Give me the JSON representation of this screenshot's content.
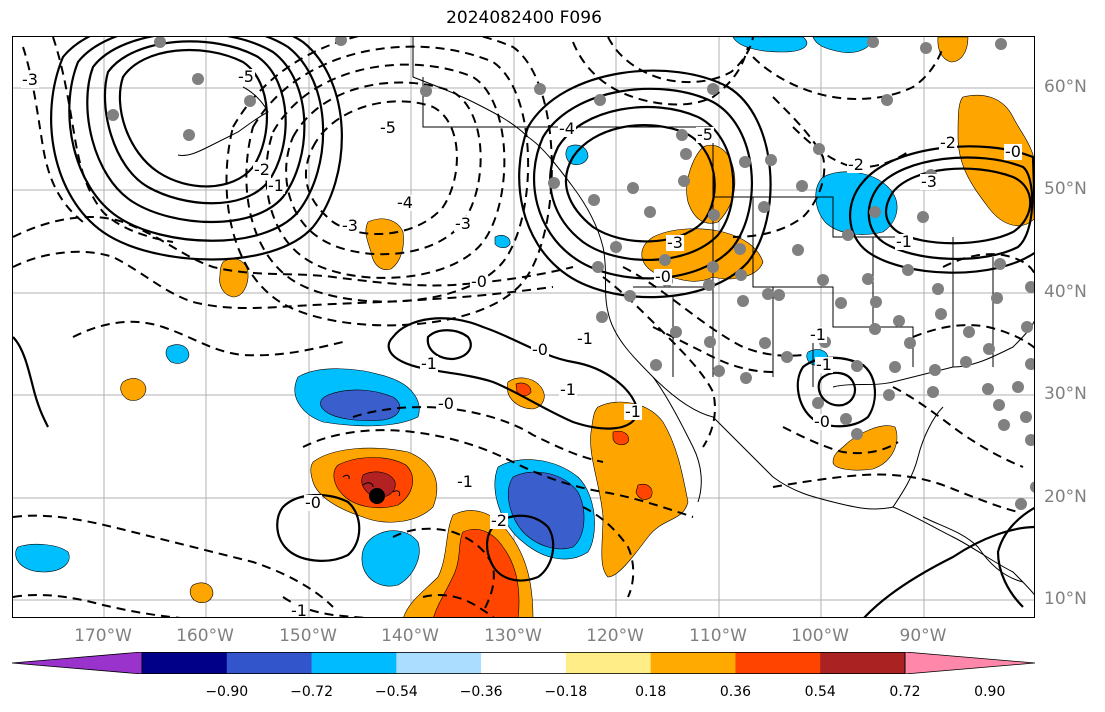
{
  "title": "2024082400 F096",
  "map": {
    "lon_labels": [
      "170°W",
      "160°W",
      "150°W",
      "140°W",
      "130°W",
      "120°W",
      "110°W",
      "100°W",
      "90°W"
    ],
    "lat_labels": [
      "60°N",
      "50°N",
      "40°N",
      "30°N",
      "20°N",
      "10°N"
    ],
    "lon_range": [
      -180,
      -80
    ],
    "lat_range": [
      7,
      65
    ],
    "contour_labels": [
      "-3",
      "-5",
      "-2",
      "-1",
      "-5",
      "-3",
      "-4",
      "-3",
      "-0",
      "-1",
      "-0",
      "-1",
      "-0",
      "-1",
      "-1",
      "-0",
      "-2",
      "-1",
      "-1",
      "-0",
      "-1",
      "-3",
      "-4",
      "-5",
      "-1",
      "-0",
      "-2",
      "-3",
      "-2",
      "-0",
      "-1"
    ],
    "gridlines": true
  },
  "colorbar": {
    "colors": [
      "#9933cc",
      "#000088",
      "#3355cc",
      "#00bbff",
      "#aaddff",
      "#ffffff",
      "#ffee88",
      "#ffaa00",
      "#ff4400",
      "#aa2222",
      "#ff88aa"
    ],
    "tick_labels": [
      "−0.90",
      "−0.72",
      "−0.54",
      "−0.36",
      "−0.18",
      "0.18",
      "0.36",
      "0.54",
      "0.72",
      "0.90"
    ]
  },
  "fill_colors": {
    "orange": "#ffa500",
    "red_orange": "#ff4500",
    "dark_red": "#b22222",
    "light_blue": "#00bfff",
    "blue": "#3a5fcd"
  }
}
